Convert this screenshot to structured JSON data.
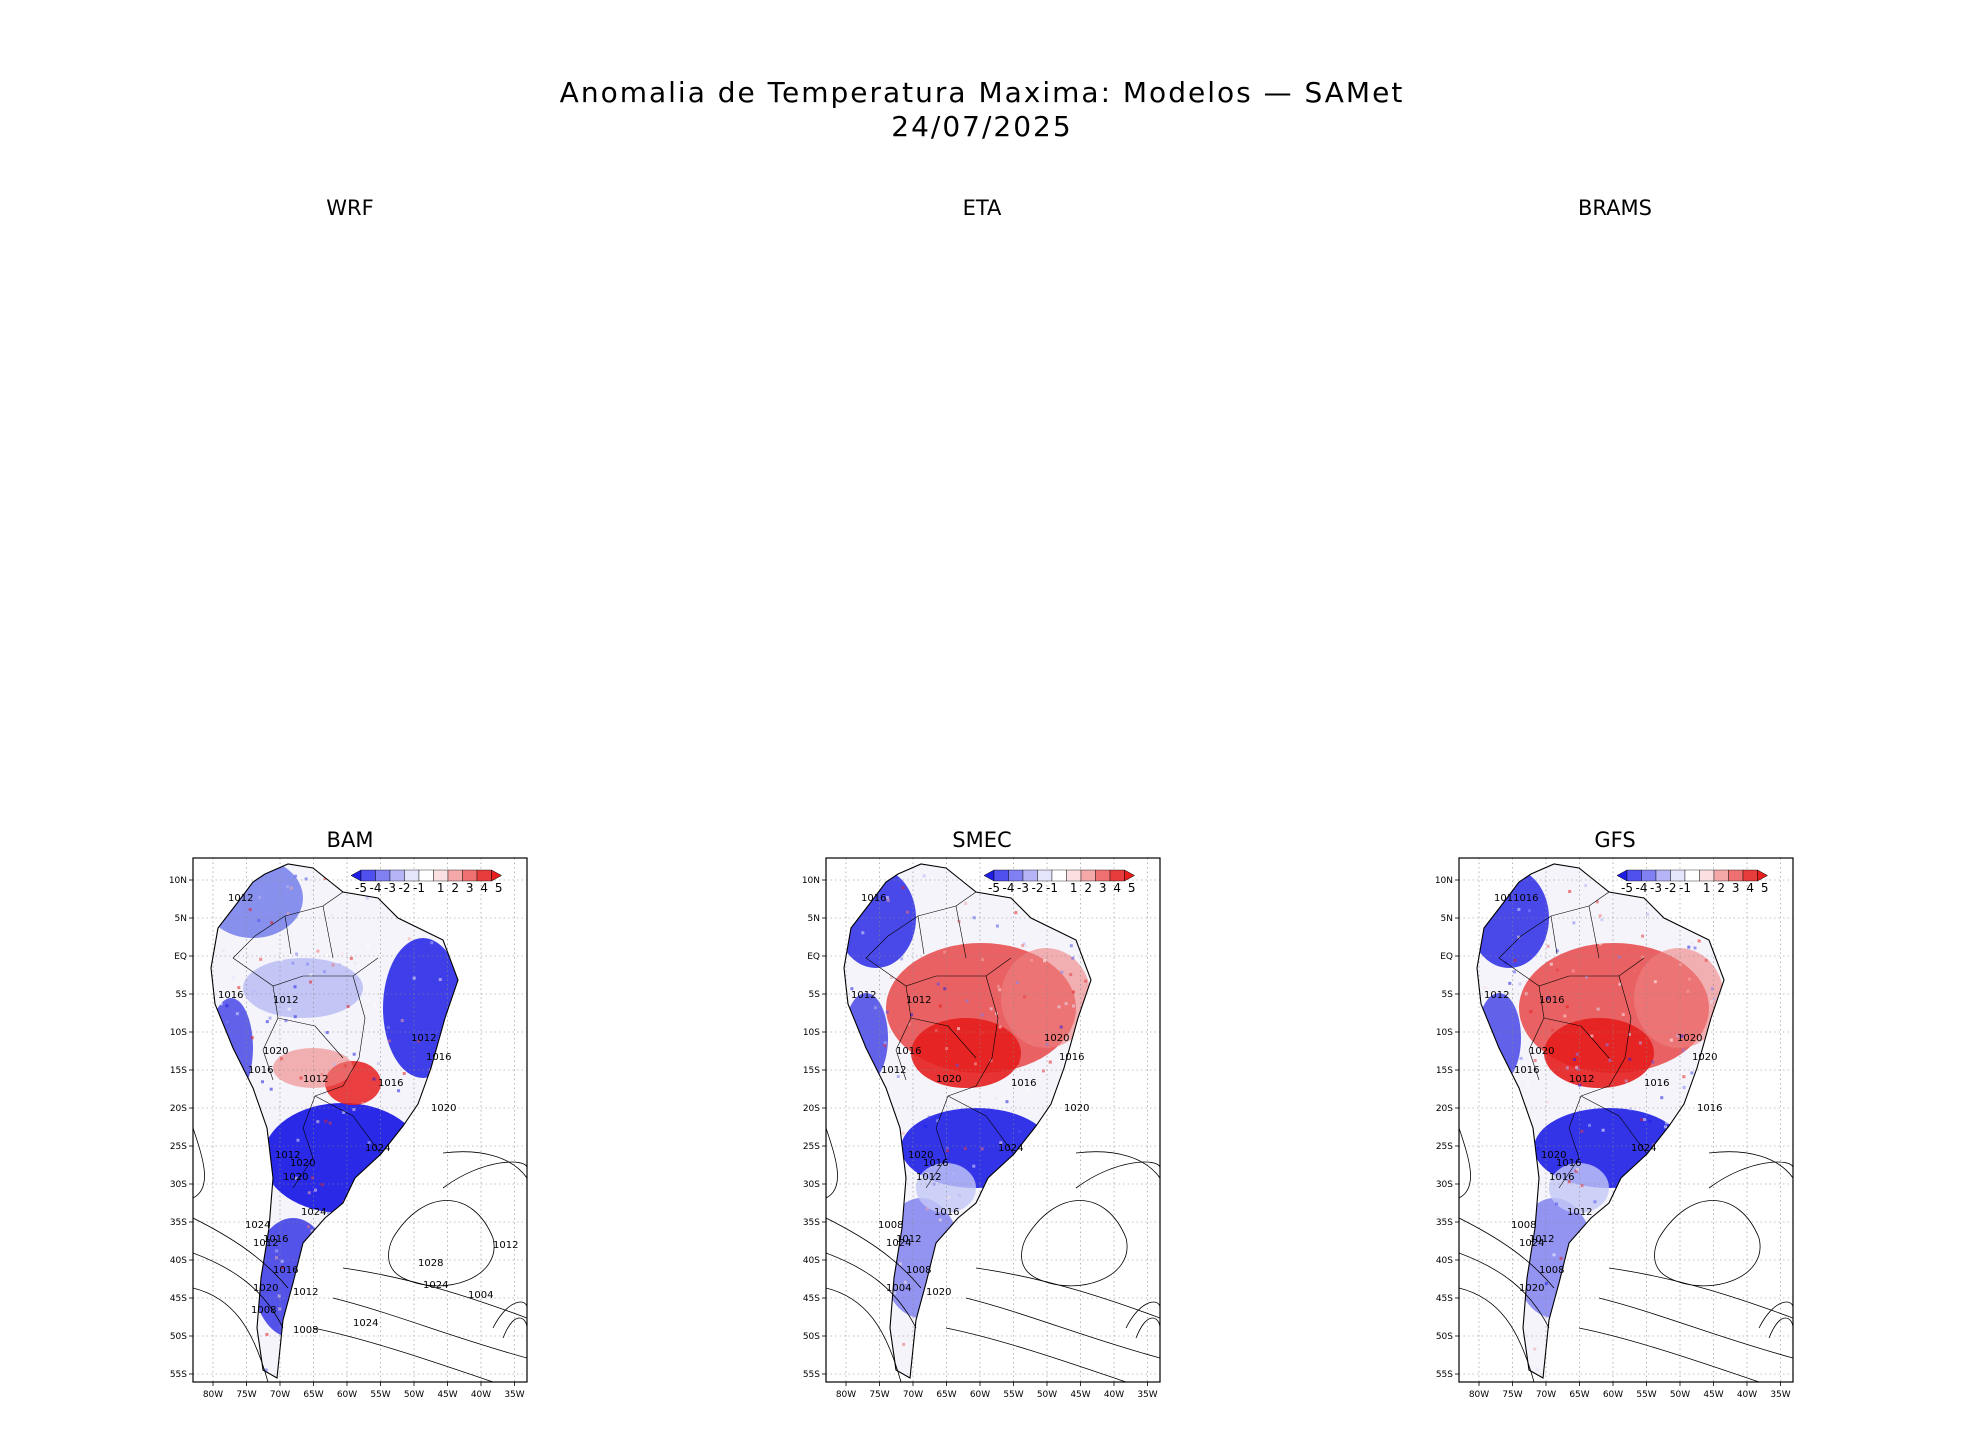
{
  "title": {
    "line1": "Anomalia de Temperatura Maxima: Modelos — SAMet",
    "line2": "24/07/2025"
  },
  "empty_panels": [
    "WRF",
    "ETA",
    "BRAMS"
  ],
  "panels": [
    {
      "name": "BAM",
      "lat_ticks": [
        "10N",
        "5N",
        "EQ",
        "5S",
        "10S",
        "15S",
        "20S",
        "25S",
        "30S",
        "35S",
        "40S",
        "45S",
        "50S",
        "55S"
      ],
      "lon_ticks": [
        "80W",
        "75W",
        "70W",
        "65W",
        "60W",
        "55W",
        "50W",
        "45W",
        "40W",
        "35W"
      ],
      "colorbar_labels": [
        "-5",
        "-4",
        "-3",
        "-2",
        "-1",
        "1",
        "2",
        "3",
        "4",
        "5"
      ],
      "isobar_labels": [
        "1012",
        "1016",
        "1012",
        "1020",
        "1016",
        "1012",
        "1016",
        "1012",
        "1016",
        "1020",
        "1024",
        "1012",
        "1020",
        "1020",
        "1024",
        "1016",
        "1024",
        "1012",
        "1016",
        "1020",
        "1012",
        "1008",
        "1024",
        "1028",
        "1024",
        "1008",
        "1004",
        "1012"
      ],
      "style": "cold"
    },
    {
      "name": "SMEC",
      "lat_ticks": [
        "10N",
        "5N",
        "EQ",
        "5S",
        "10S",
        "15S",
        "20S",
        "25S",
        "30S",
        "35S",
        "40S",
        "45S",
        "50S",
        "55S"
      ],
      "lon_ticks": [
        "80W",
        "75W",
        "70W",
        "65W",
        "60W",
        "55W",
        "50W",
        "45W",
        "40W",
        "35W"
      ],
      "colorbar_labels": [
        "-5",
        "-4",
        "-3",
        "-2",
        "-1",
        "1",
        "2",
        "3",
        "4",
        "5"
      ],
      "isobar_labels": [
        "1016",
        "1012",
        "1012",
        "1016",
        "1012",
        "1020",
        "1016",
        "1020",
        "1016",
        "1020",
        "1024",
        "1020",
        "1016",
        "1012",
        "1016",
        "1012",
        "1008",
        "1024",
        "1008",
        "1004",
        "1020"
      ],
      "style": "warm"
    },
    {
      "name": "GFS",
      "lat_ticks": [
        "10N",
        "5N",
        "EQ",
        "5S",
        "10S",
        "15S",
        "20S",
        "25S",
        "30S",
        "35S",
        "40S",
        "45S",
        "50S",
        "55S"
      ],
      "lon_ticks": [
        "80W",
        "75W",
        "70W",
        "65W",
        "60W",
        "55W",
        "50W",
        "45W",
        "40W",
        "35W"
      ],
      "colorbar_labels": [
        "-5",
        "-4",
        "-3",
        "-2",
        "-1",
        "1",
        "2",
        "3",
        "4",
        "5"
      ],
      "isobar_labels": [
        "1011016",
        "1012",
        "1016",
        "1020",
        "1016",
        "1012",
        "1016",
        "1020",
        "1020",
        "1016",
        "1024",
        "1020",
        "1016",
        "1016",
        "1012",
        "1012",
        "1008",
        "1024",
        "1008",
        "1020"
      ],
      "style": "warm"
    }
  ],
  "colors": {
    "strong_cold": "#1e1ee6",
    "strong_warm": "#e61e1e",
    "land_neutral": "#f4f4fa"
  }
}
